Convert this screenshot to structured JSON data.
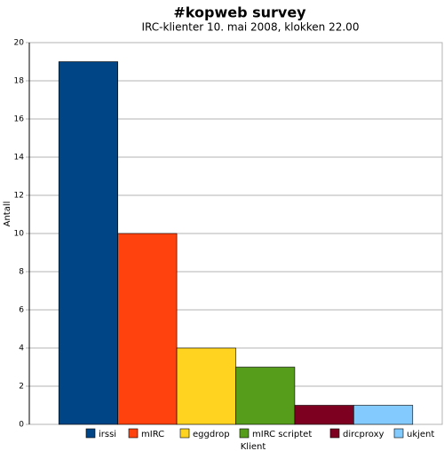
{
  "chart_data": {
    "type": "bar",
    "title": "#kopweb survey",
    "subtitle": "IRC-klienter 10. mai 2008, klokken 22.00",
    "y_label": "Antall",
    "x_label": "Klient",
    "series": [
      {
        "name": "irssi",
        "color": "#004586",
        "values": [
          19
        ]
      },
      {
        "name": "mIRC",
        "color": "#ff420e",
        "values": [
          10
        ]
      },
      {
        "name": "eggdrop",
        "color": "#ffd320",
        "values": [
          4
        ]
      },
      {
        "name": "mIRC scriptet",
        "color": "#579d1c",
        "values": [
          3
        ]
      },
      {
        "name": "dircproxy",
        "color": "#7e0021",
        "values": [
          1
        ]
      },
      {
        "name": "ukjent",
        "color": "#83caff",
        "values": [
          1
        ]
      }
    ],
    "ylim": [
      0,
      20
    ],
    "yticks": [
      0,
      2,
      4,
      6,
      8,
      10,
      12,
      14,
      16,
      18,
      20
    ],
    "grid": true,
    "legend": "bottom"
  }
}
